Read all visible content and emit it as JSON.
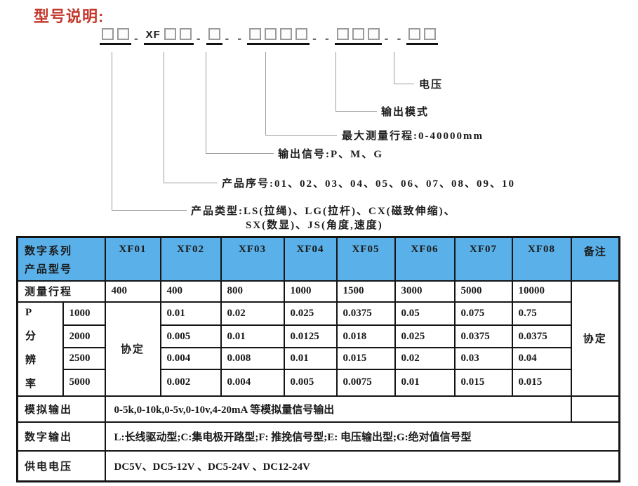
{
  "page": {
    "title": "型号说明:",
    "title_color": "#c4372b",
    "header_blue": "#5ab0e8",
    "border_color": "#151515"
  },
  "model_format": {
    "groups": [
      {
        "boxes": 2
      },
      {
        "text": "XF",
        "boxes": 2
      },
      {
        "boxes": 1
      },
      {
        "boxes": 4
      },
      {
        "boxes": 3
      },
      {
        "boxes": 2
      }
    ],
    "separators": [
      "-",
      "-",
      "- -",
      "- -",
      "- -"
    ]
  },
  "diagram": {
    "voltage": "电压",
    "output_mode": "输出模式",
    "max_travel": "最大测量行程:0-40000mm",
    "output_signal": "输出信号:P、M、G",
    "product_serial": "产品序号:01、02、03、04、05、06、07、08、09、10",
    "product_type_line1": "产品类型:LS(拉绳)、LG(拉杆)、CX(磁致伸缩)、",
    "product_type_line2": "SX(数显)、JS(角度,速度)"
  },
  "table": {
    "header": {
      "line1": "数字系列",
      "line2": "产品型号",
      "columns": [
        "XF01",
        "XF02",
        "XF03",
        "XF04",
        "XF05",
        "XF06",
        "XF07",
        "XF08"
      ],
      "note": "备注"
    },
    "travel": {
      "label": "测量行程",
      "values": [
        "400",
        "400",
        "800",
        "1000",
        "1500",
        "3000",
        "5000",
        "10000"
      ]
    },
    "resolution": {
      "chars": [
        "P",
        "分",
        "辨",
        "率"
      ],
      "xf01": "协定",
      "note": "协定",
      "rows": [
        {
          "level": "1000",
          "values": [
            "0.01",
            "0.02",
            "0.025",
            "0.0375",
            "0.05",
            "0.075",
            "0.75"
          ]
        },
        {
          "level": "2000",
          "values": [
            "0.005",
            "0.01",
            "0.0125",
            "0.018",
            "0.025",
            "0.0375",
            "0.0375"
          ]
        },
        {
          "level": "2500",
          "values": [
            "0.004",
            "0.008",
            "0.01",
            "0.015",
            "0.02",
            "0.03",
            "0.04"
          ]
        },
        {
          "level": "5000",
          "values": [
            "0.002",
            "0.004",
            "0.005",
            "0.0075",
            "0.01",
            "0.015",
            "0.015"
          ]
        }
      ]
    },
    "outputs": [
      {
        "label": "模拟输出",
        "value": "0-5k,0-10k,0-5v,0-10v,4-20mA 等模拟量信号输出"
      },
      {
        "label": "数字输出",
        "value": "L:长线驱动型;C:集电极开路型;F: 推挽信号型;E: 电压输出型;G:绝对值信号型"
      },
      {
        "label": "供电电压",
        "value": "DC5V、DC5-12V 、DC5-24V 、DC12-24V"
      }
    ]
  }
}
